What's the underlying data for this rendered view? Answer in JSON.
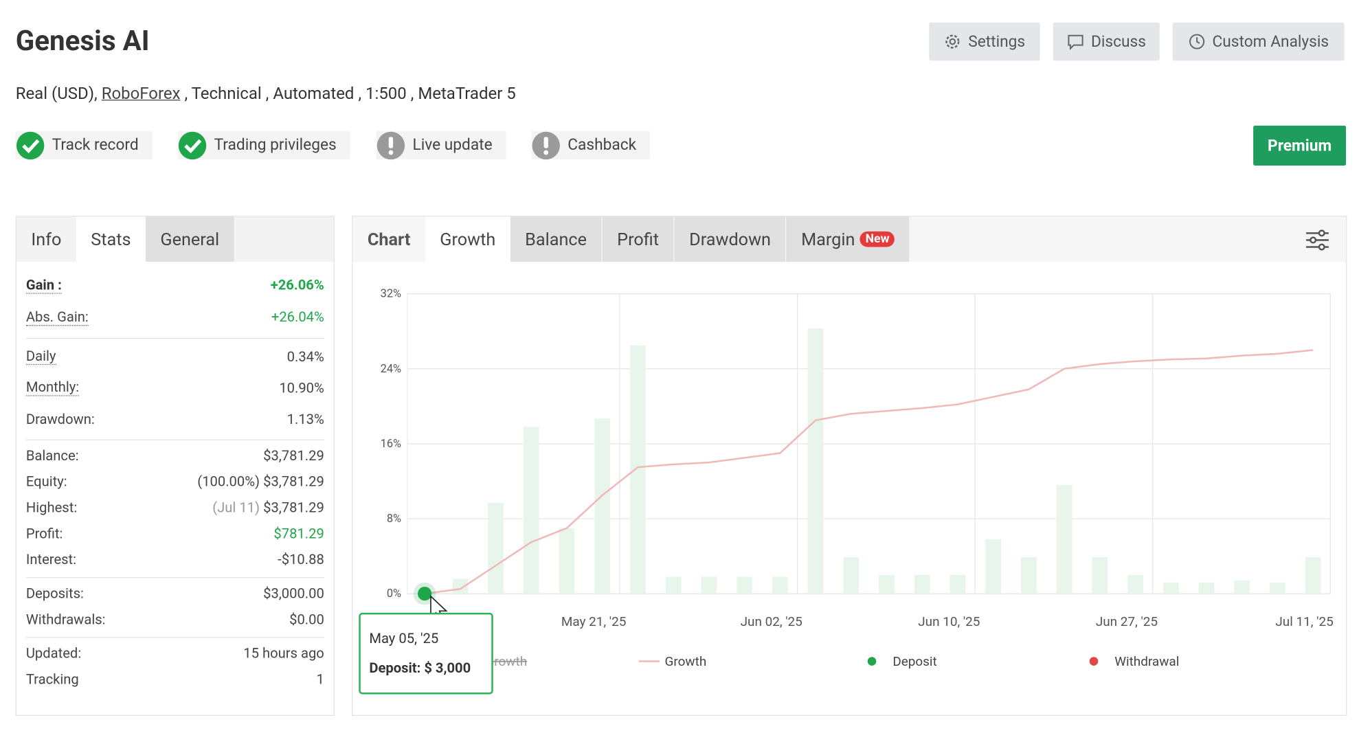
{
  "header": {
    "title": "Genesis AI",
    "buttons": [
      "Settings",
      "Discuss",
      "Custom Analysis"
    ],
    "subtitle": {
      "account": "Real (USD),",
      "broker": "RoboForex",
      "details": ", Technical , Automated , 1:500 , MetaTrader 5"
    },
    "badges": [
      {
        "label": "Track record",
        "status": "ok"
      },
      {
        "label": "Trading privileges",
        "status": "ok"
      },
      {
        "label": "Live update",
        "status": "warn"
      },
      {
        "label": "Cashback",
        "status": "warn"
      }
    ],
    "premium": "Premium"
  },
  "info_tabs": [
    "Info",
    "Stats",
    "General"
  ],
  "stats": {
    "groups": [
      {
        "rows": [
          {
            "label": "Gain :",
            "value": "+26.06%",
            "color": "#1fa64a",
            "bold": true
          },
          {
            "label": "Abs. Gain:",
            "value": "+26.04%",
            "color": "#1fa64a"
          }
        ]
      },
      {
        "rows": [
          {
            "label": "Daily",
            "value": "0.34%"
          },
          {
            "label": "Monthly:",
            "value": "10.90%"
          },
          {
            "label": "Drawdown:",
            "value": "1.13%"
          }
        ]
      },
      {
        "rows": [
          {
            "label": "Balance:",
            "value": "$3,781.29"
          },
          {
            "label": "Equity:",
            "note": "(100.00%)",
            "value": "$3,781.29"
          },
          {
            "label": "Highest:",
            "note": "(Jul 11)",
            "value": "$3,781.29"
          },
          {
            "label": "Profit:",
            "value": "$781.29",
            "color": "#1fa64a"
          },
          {
            "label": "Interest:",
            "value": "-$10.88"
          }
        ]
      },
      {
        "rows": [
          {
            "label": "Deposits:",
            "value": "$3,000.00"
          },
          {
            "label": "Withdrawals:",
            "value": "$0.00"
          }
        ]
      },
      {
        "rows": [
          {
            "label": "Updated:",
            "value": "15 hours ago"
          },
          {
            "label": "Tracking",
            "value": "1"
          }
        ]
      }
    ]
  },
  "chart_tabs": {
    "label": "Chart",
    "tabs": [
      "Growth",
      "Balance",
      "Profit",
      "Drawdown",
      "Margin"
    ],
    "badge": "New"
  },
  "chart_data": {
    "type": "bar",
    "categories": [
      null,
      null,
      null,
      null,
      null,
      "May 21, '25",
      null,
      null,
      null,
      null,
      "Jun 02, '25",
      null,
      null,
      null,
      null,
      "Jun 10, '25",
      null,
      null,
      null,
      null,
      "Jun 27, '25",
      null,
      null,
      null,
      null,
      "Jul 11, '25"
    ],
    "ylim": [
      0,
      32
    ],
    "yticks": [
      {
        "value": 0,
        "label": "0%"
      },
      {
        "value": 8,
        "label": "8%"
      },
      {
        "value": 16,
        "label": "16%"
      },
      {
        "value": 24,
        "label": "24%"
      },
      {
        "value": 32,
        "label": "32%"
      }
    ],
    "grid": true,
    "series": [
      {
        "name": "Growth",
        "type": "bar",
        "color": "#e8f5ea",
        "disabled": true,
        "values": [
          null,
          1.6,
          9.7,
          17.8,
          7.0,
          18.7,
          26.5,
          1.8,
          1.8,
          1.8,
          1.8,
          28.3,
          3.9,
          2.0,
          2.0,
          2.0,
          5.8,
          3.9,
          11.6,
          3.9,
          2.0,
          1.2,
          1.2,
          1.4,
          1.2,
          3.9
        ]
      },
      {
        "name": "Growth",
        "type": "line",
        "color": "#f0b8b8",
        "values": [
          0,
          0.5,
          3,
          5.5,
          7,
          10.5,
          13.5,
          13.8,
          14,
          14.5,
          15,
          18.5,
          19.2,
          19.5,
          19.8,
          20.2,
          21,
          21.8,
          24,
          24.5,
          24.8,
          25,
          25.1,
          25.4,
          25.6,
          26
        ]
      },
      {
        "name": "Deposit",
        "type": "dot",
        "color": "#1fa64a",
        "values": [
          0,
          null,
          null,
          null,
          null,
          null,
          null,
          null,
          null,
          null,
          null,
          null,
          null,
          null,
          null,
          null,
          null,
          null,
          null,
          null,
          null,
          null,
          null,
          null,
          null,
          null
        ]
      },
      {
        "name": "Withdrawal",
        "type": "dot",
        "color": "#e04848",
        "values": [
          null,
          null,
          null,
          null,
          null,
          null,
          null,
          null,
          null,
          null,
          null,
          null,
          null,
          null,
          null,
          null,
          null,
          null,
          null,
          null,
          null,
          null,
          null,
          null,
          null,
          null
        ]
      }
    ],
    "tooltip": {
      "date": "May 05, '25",
      "text": "Deposit: $ 3,000"
    }
  }
}
